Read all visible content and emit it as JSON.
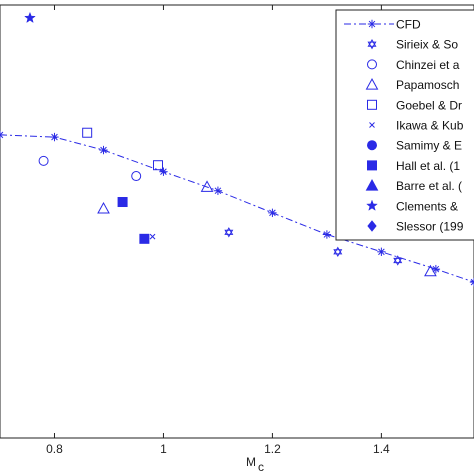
{
  "chart_data": {
    "type": "scatter",
    "xlabel": "M",
    "xlabel_sub": "c",
    "x_ticks": [
      0.8,
      1,
      1.2,
      1.4
    ],
    "x_tick_labels": [
      "0.8",
      "1",
      "1.2",
      "1.4"
    ],
    "xlim": [
      0.7,
      1.57
    ],
    "ylim": [
      0,
      1
    ],
    "grid": false,
    "legend_position": "top-right",
    "series": [
      {
        "name": "CFD",
        "marker": "asterisk",
        "line": "dash-dot",
        "points": [
          [
            0.7,
            0.7
          ],
          [
            0.8,
            0.695
          ],
          [
            0.89,
            0.665
          ],
          [
            1.0,
            0.615
          ],
          [
            1.1,
            0.571
          ],
          [
            1.2,
            0.52
          ],
          [
            1.3,
            0.47
          ],
          [
            1.4,
            0.43
          ],
          [
            1.5,
            0.39
          ],
          [
            1.57,
            0.36
          ]
        ]
      },
      {
        "name": "Sirieix & Solignac",
        "marker": "hexagram",
        "points": [
          [
            1.12,
            0.475
          ],
          [
            1.32,
            0.43
          ],
          [
            1.43,
            0.41
          ]
        ]
      },
      {
        "name": "Chinzei et al.",
        "marker": "circle-open",
        "points": [
          [
            0.78,
            0.64
          ],
          [
            0.95,
            0.605
          ]
        ]
      },
      {
        "name": "Papamoschou & Roshko",
        "marker": "triangle-open",
        "points": [
          [
            0.89,
            0.53
          ],
          [
            1.08,
            0.58
          ],
          [
            1.49,
            0.385
          ]
        ]
      },
      {
        "name": "Goebel & Dutton",
        "marker": "square-open",
        "points": [
          [
            0.86,
            0.705
          ],
          [
            0.99,
            0.63
          ]
        ]
      },
      {
        "name": "Ikawa & Kubota",
        "marker": "x",
        "points": [
          [
            0.98,
            0.465
          ]
        ]
      },
      {
        "name": "Samimy & Elliott",
        "marker": "circle-filled",
        "points": []
      },
      {
        "name": "Hall et al.",
        "marker": "square-filled",
        "points": [
          [
            0.925,
            0.545
          ],
          [
            0.965,
            0.46
          ]
        ]
      },
      {
        "name": "Barre et al.",
        "marker": "triangle-filled",
        "points": []
      },
      {
        "name": "Clements & Smits",
        "marker": "star-filled",
        "points": [
          [
            0.755,
            0.97
          ]
        ]
      },
      {
        "name": "Slessor",
        "marker": "diamond-filled",
        "points": []
      }
    ],
    "legend_labels": [
      "CFD",
      "Sirieix & So",
      "Chinzei et a",
      "Papamosch",
      "Goebel & Dr",
      "Ikawa & Kub",
      "Samimy & E",
      "Hall et al. (1",
      "Barre et al. (",
      "Clements &",
      "Slessor (199"
    ],
    "color": "#2a2ae6"
  }
}
